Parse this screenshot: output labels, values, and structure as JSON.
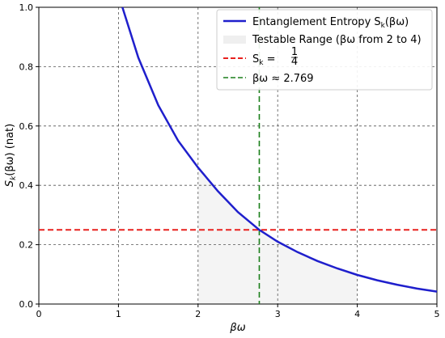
{
  "chart_data": {
    "type": "line",
    "xlabel": "βω",
    "ylabel_parts": [
      "S",
      "k",
      "(βω) (nat)"
    ],
    "xlim": [
      0,
      5
    ],
    "ylim": [
      0,
      1.0
    ],
    "x_ticks": [
      0,
      1,
      2,
      3,
      4,
      5
    ],
    "y_ticks": [
      0.0,
      0.2,
      0.4,
      0.6,
      0.8,
      1.0
    ],
    "x_tick_labels": [
      "0",
      "1",
      "2",
      "3",
      "4",
      "5"
    ],
    "y_tick_labels": [
      "0.0",
      "0.2",
      "0.4",
      "0.6",
      "0.8",
      "1.0"
    ],
    "grid": true,
    "legend_position": "top-right",
    "series": [
      {
        "name": "Entanglement Entropy S_k(βω)",
        "name_parts": [
          "Entanglement Entropy S",
          "k",
          "(βω)"
        ],
        "kind": "line",
        "color": "#1f1fcc",
        "x": [
          1.05,
          1.25,
          1.5,
          1.75,
          2.0,
          2.25,
          2.5,
          2.769,
          3.0,
          3.25,
          3.5,
          3.75,
          4.0,
          4.25,
          4.5,
          4.75,
          5.0
        ],
        "y": [
          1.0,
          0.83,
          0.67,
          0.55,
          0.46,
          0.38,
          0.31,
          0.25,
          0.21,
          0.175,
          0.145,
          0.12,
          0.098,
          0.08,
          0.065,
          0.052,
          0.042
        ]
      },
      {
        "name": "Testable Range (βω from 2 to 4)",
        "kind": "area",
        "color": "#ebebeb",
        "x_range": [
          2,
          4
        ]
      },
      {
        "name": "S_k = 1/4",
        "name_parts": [
          "S",
          "k",
          " = ",
          "1",
          "4"
        ],
        "kind": "hline",
        "color": "#e8211e",
        "y": 0.25
      },
      {
        "name": "βω ≈ 2.769",
        "kind": "vline",
        "color": "#1a7f1a",
        "x": 2.769
      }
    ]
  }
}
